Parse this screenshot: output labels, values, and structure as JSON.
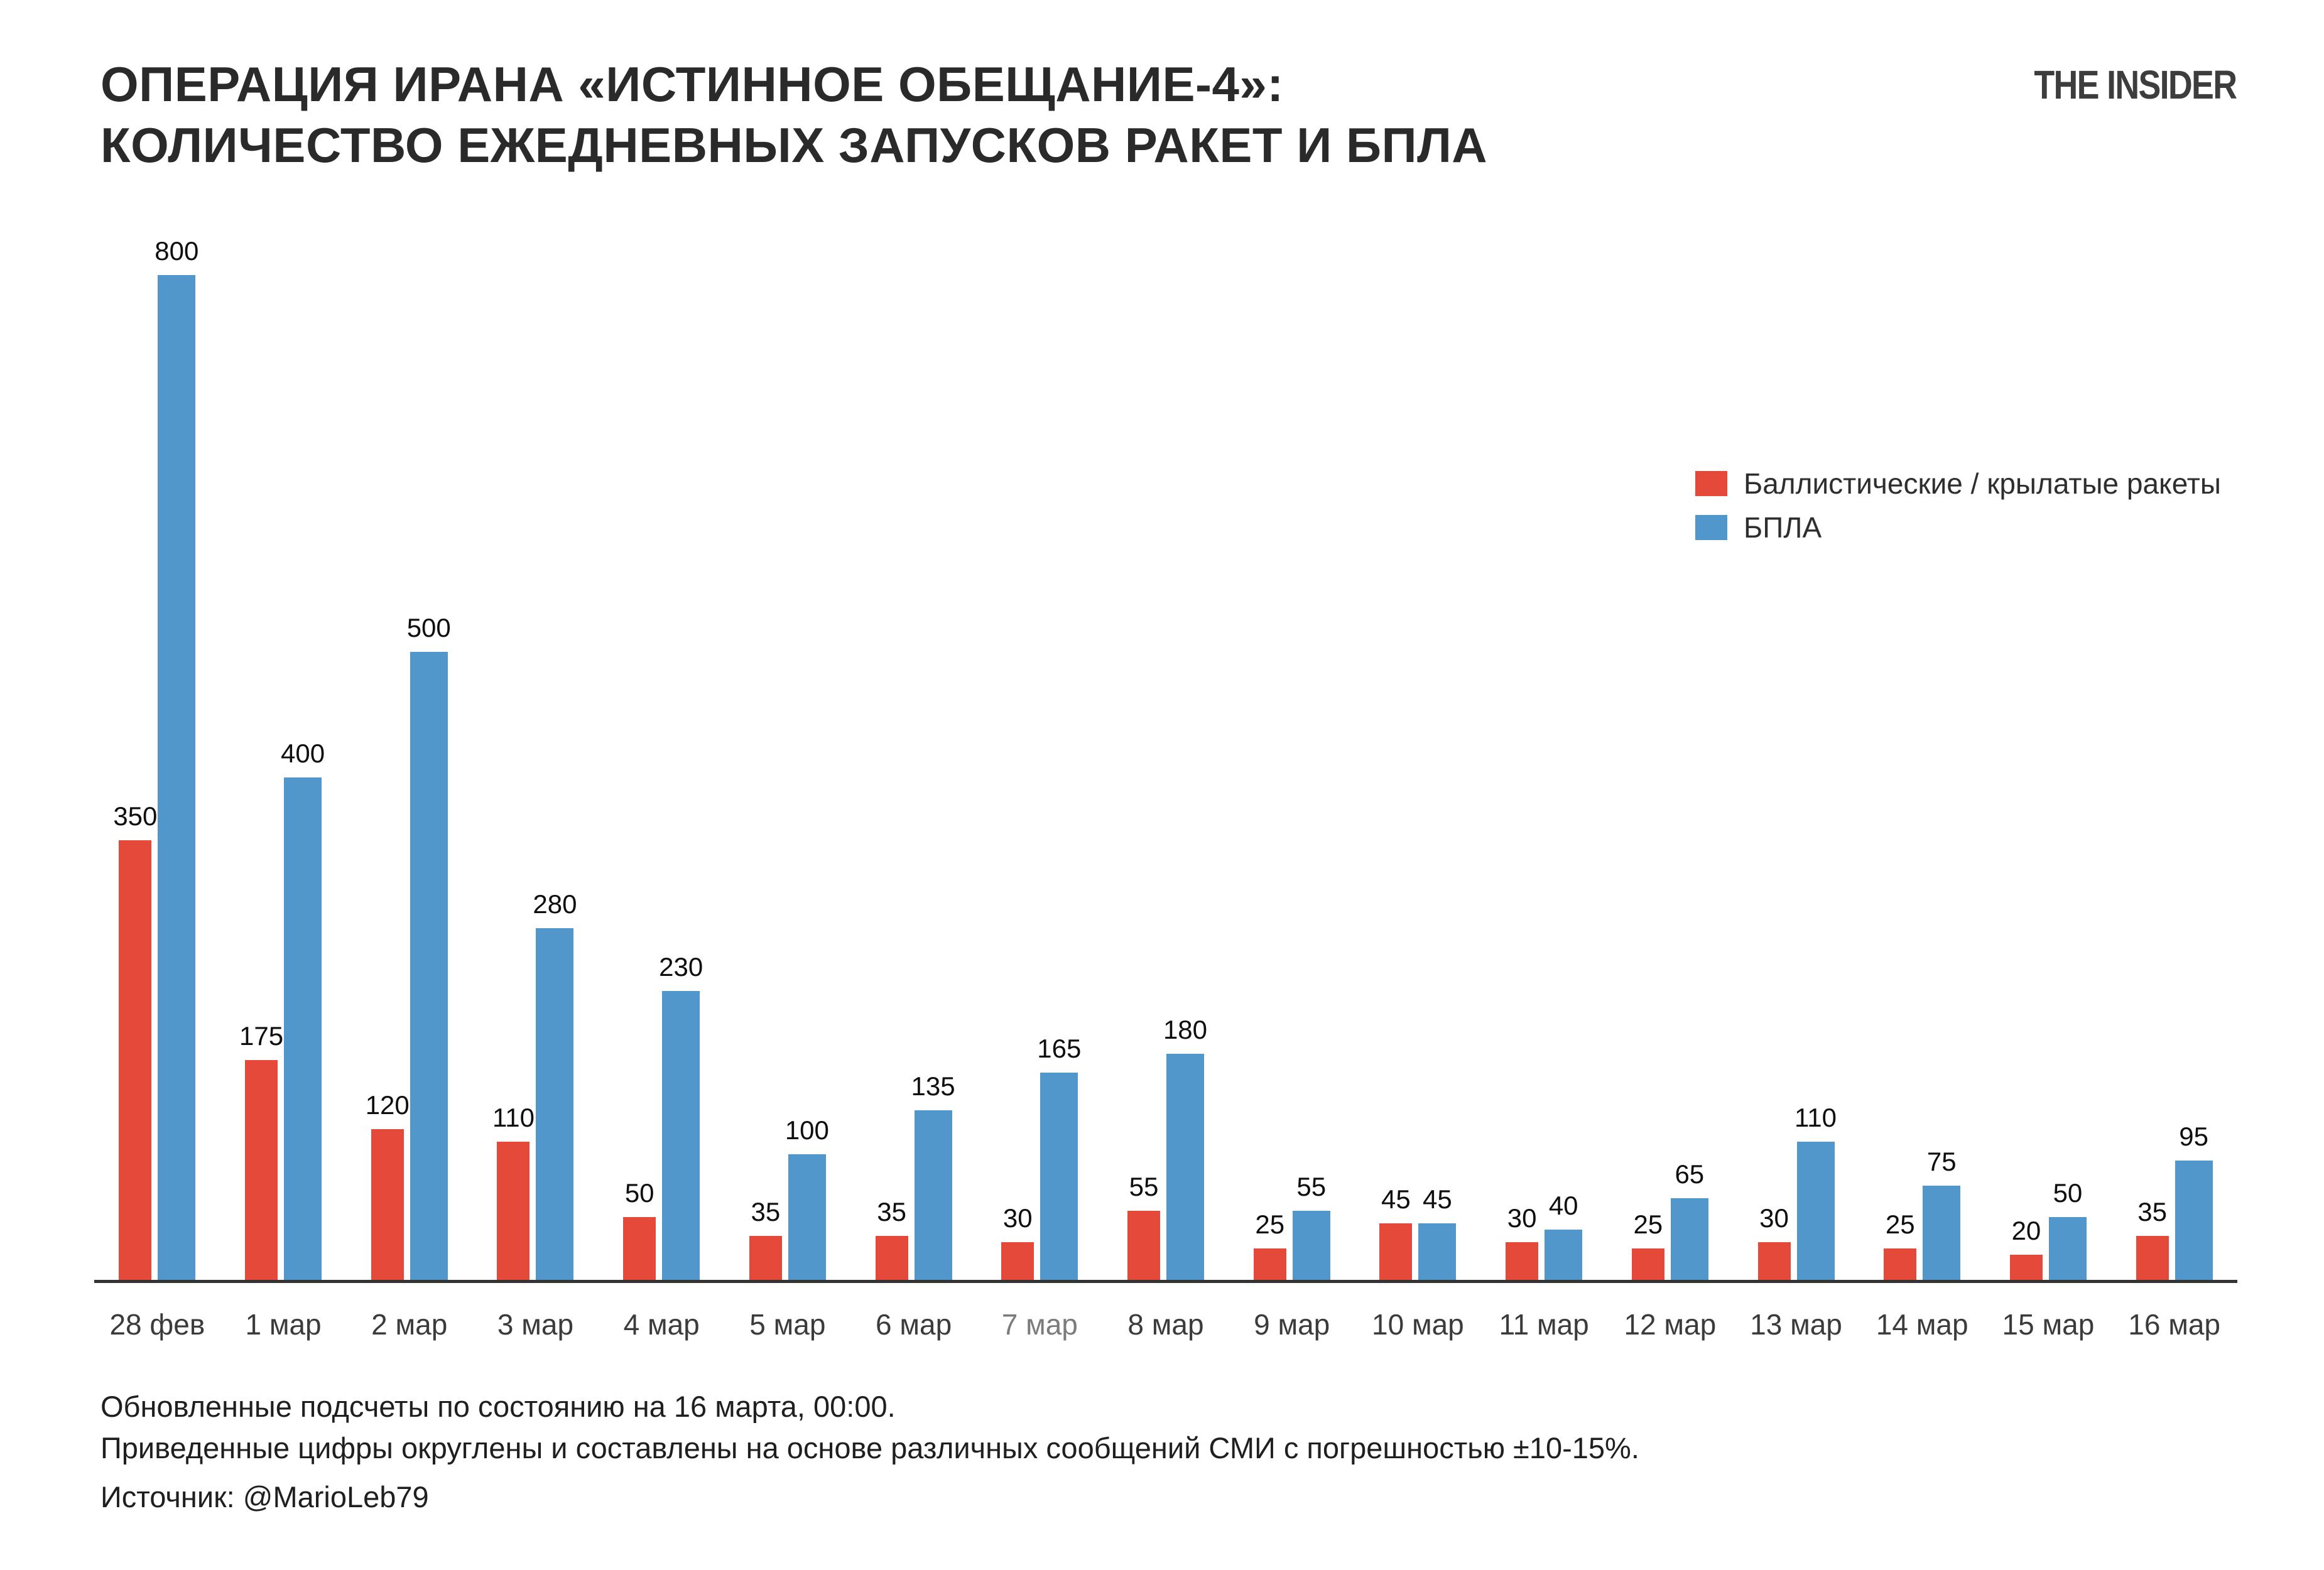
{
  "header": {
    "title_line1": "ОПЕРАЦИЯ ИРАНА «ИСТИННОЕ ОБЕЩАНИЕ-4»:",
    "title_line2": "КОЛИЧЕСТВО ЕЖЕДНЕВНЫХ ЗАПУСКОВ РАКЕТ И БПЛА",
    "logo": "THE INSIDER"
  },
  "legend": {
    "items": [
      {
        "label": "Баллистические / крылатые ракеты",
        "color": "#e4493a"
      },
      {
        "label": "БПЛА",
        "color": "#5297cb"
      }
    ]
  },
  "chart_data": {
    "type": "bar",
    "title": "ОПЕРАЦИЯ ИРАНА «ИСТИННОЕ ОБЕЩАНИЕ-4»: КОЛИЧЕСТВО ЕЖЕДНЕВНЫХ ЗАПУСКОВ РАКЕТ И БПЛА",
    "categories": [
      "28 фев",
      "1 мар",
      "2 мар",
      "3 мар",
      "4 мар",
      "5 мар",
      "6 мар",
      "7 мар",
      "8 мар",
      "9 мар",
      "10 мар",
      "11 мар",
      "12 мар",
      "13 мар",
      "14 мар",
      "15 мар",
      "16 мар"
    ],
    "series": [
      {
        "name": "Баллистические / крылатые ракеты",
        "color": "#e4493a",
        "values": [
          350,
          175,
          120,
          110,
          50,
          35,
          35,
          30,
          55,
          25,
          45,
          30,
          25,
          30,
          25,
          20,
          35
        ]
      },
      {
        "name": "БПЛА",
        "color": "#5297cb",
        "values": [
          800,
          400,
          500,
          280,
          230,
          100,
          135,
          165,
          180,
          55,
          45,
          40,
          65,
          110,
          75,
          50,
          95
        ]
      }
    ],
    "xlabel": "",
    "ylabel": "",
    "ylim": [
      0,
      800
    ],
    "grid": false,
    "value_labels": true,
    "legend_position": "upper-right",
    "muted_category_index": 7,
    "axis_color": "#333333",
    "tick_color": "#3b3b3b",
    "tick_muted_color": "#7b7b7b"
  },
  "footer": {
    "note1": "Обновленные подсчеты по состоянию на 16 марта, 00:00.",
    "note2": "Приведенные цифры округлены и составлены на основе различных сообщений СМИ с погрешностью ±10-15%.",
    "source": "Источник: @MarioLeb79"
  }
}
